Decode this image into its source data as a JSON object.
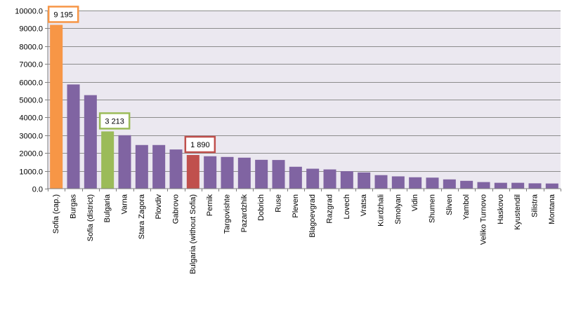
{
  "chart_data": {
    "type": "bar",
    "title": "",
    "xlabel": "",
    "ylabel": "",
    "ylim": [
      0,
      10000
    ],
    "yticks": [
      "0.0",
      "1000.0",
      "2000.0",
      "3000.0",
      "4000.0",
      "5000.0",
      "6000.0",
      "7000.0",
      "8000.0",
      "9000.0",
      "10000.0"
    ],
    "grid": true,
    "categories": [
      "Sofia (cap.)",
      "Burgas",
      "Sofia (district)",
      "Bulgaria",
      "Varna",
      "Stara Zagora",
      "Plovdiv",
      "Gabrovo",
      "Bulgaria (without Sofia)",
      "Pernik",
      "Targovishte",
      "Pazardzhik",
      "Dobrich",
      "Ruse",
      "Pleven",
      "Blagoevgrad",
      "Razgrad",
      "Lovech",
      "Vratsa",
      "Kurdzhali",
      "Smolyan",
      "Vidin",
      "Shumen",
      "Sliven",
      "Yambol",
      "Veliko Turnovo",
      "Haskovo",
      "Kyustendil",
      "Silistra",
      "Montana"
    ],
    "values": [
      9195,
      5850,
      5250,
      3213,
      3000,
      2450,
      2450,
      2200,
      1890,
      1820,
      1780,
      1740,
      1620,
      1610,
      1230,
      1120,
      1080,
      980,
      910,
      760,
      690,
      640,
      620,
      520,
      440,
      370,
      330,
      330,
      300,
      290
    ],
    "colors": {
      "default": "#8064a2",
      "Sofia (cap.)": "#f79646",
      "Bulgaria": "#9bbb59",
      "Bulgaria (without Sofia)": "#c0504d"
    },
    "plot_background": "#ebe8f0",
    "gridline_color": "#8c8c8c",
    "callouts": [
      {
        "category": "Sofia (cap.)",
        "label": "9 195",
        "border_color": "#f79646"
      },
      {
        "category": "Bulgaria",
        "label": "3 213",
        "border_color": "#9bbb59"
      },
      {
        "category": "Bulgaria (without Sofia)",
        "label": "1 890",
        "border_color": "#c0504d"
      }
    ]
  }
}
